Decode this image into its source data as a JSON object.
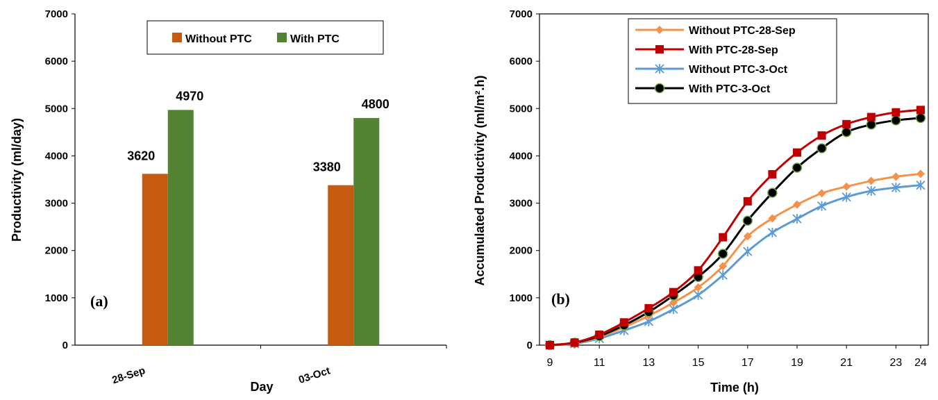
{
  "chart_data": [
    {
      "type": "bar",
      "panel_label": "(a)",
      "categories": [
        "28-Sep",
        "03-Oct"
      ],
      "series": [
        {
          "name": "Without PTC",
          "color": "#C55A11",
          "values": [
            3620,
            3380
          ]
        },
        {
          "name": "With PTC",
          "color": "#548235",
          "values": [
            4970,
            4800
          ]
        }
      ],
      "data_labels": true,
      "xlabel": "Day",
      "ylabel": "Productivity  (ml/day)",
      "ylim": [
        0,
        7000
      ],
      "yticks": [
        0,
        1000,
        2000,
        3000,
        4000,
        5000,
        6000,
        7000
      ],
      "legend": "top",
      "grid": false
    },
    {
      "type": "line",
      "panel_label": "(b)",
      "x": [
        9,
        10,
        11,
        12,
        13,
        14,
        15,
        16,
        17,
        18,
        19,
        20,
        21,
        22,
        23,
        24
      ],
      "series": [
        {
          "name": "Without PTC-28-Sep",
          "color": "#F4914A",
          "marker": "diamond",
          "values": [
            0,
            40,
            170,
            380,
            620,
            900,
            1220,
            1670,
            2300,
            2680,
            2970,
            3210,
            3350,
            3470,
            3560,
            3620
          ]
        },
        {
          "name": "With PTC-28-Sep",
          "color": "#C00000",
          "marker": "square",
          "values": [
            0,
            55,
            220,
            480,
            780,
            1120,
            1580,
            2280,
            3040,
            3610,
            4070,
            4430,
            4670,
            4820,
            4920,
            4970
          ]
        },
        {
          "name": "Without PTC-3-Oct",
          "color": "#5B9BD5",
          "marker": "star",
          "values": [
            0,
            30,
            140,
            310,
            500,
            760,
            1060,
            1480,
            1980,
            2380,
            2670,
            2940,
            3130,
            3260,
            3330,
            3380
          ]
        },
        {
          "name": "With PTC-3-Oct",
          "color": "#000000",
          "marker": "circle",
          "values": [
            0,
            50,
            190,
            420,
            700,
            1050,
            1440,
            1930,
            2630,
            3220,
            3750,
            4160,
            4500,
            4660,
            4750,
            4800
          ]
        }
      ],
      "xlabel": "Time (h)",
      "ylabel": "Accumulated Productivity (ml/m².h)",
      "xlim": [
        9,
        24
      ],
      "xticks": [
        9,
        11,
        13,
        15,
        17,
        19,
        21,
        23,
        24
      ],
      "ylim": [
        0,
        7000
      ],
      "yticks": [
        0,
        1000,
        2000,
        3000,
        4000,
        5000,
        6000,
        7000
      ],
      "legend": "top-center",
      "grid": false
    }
  ]
}
